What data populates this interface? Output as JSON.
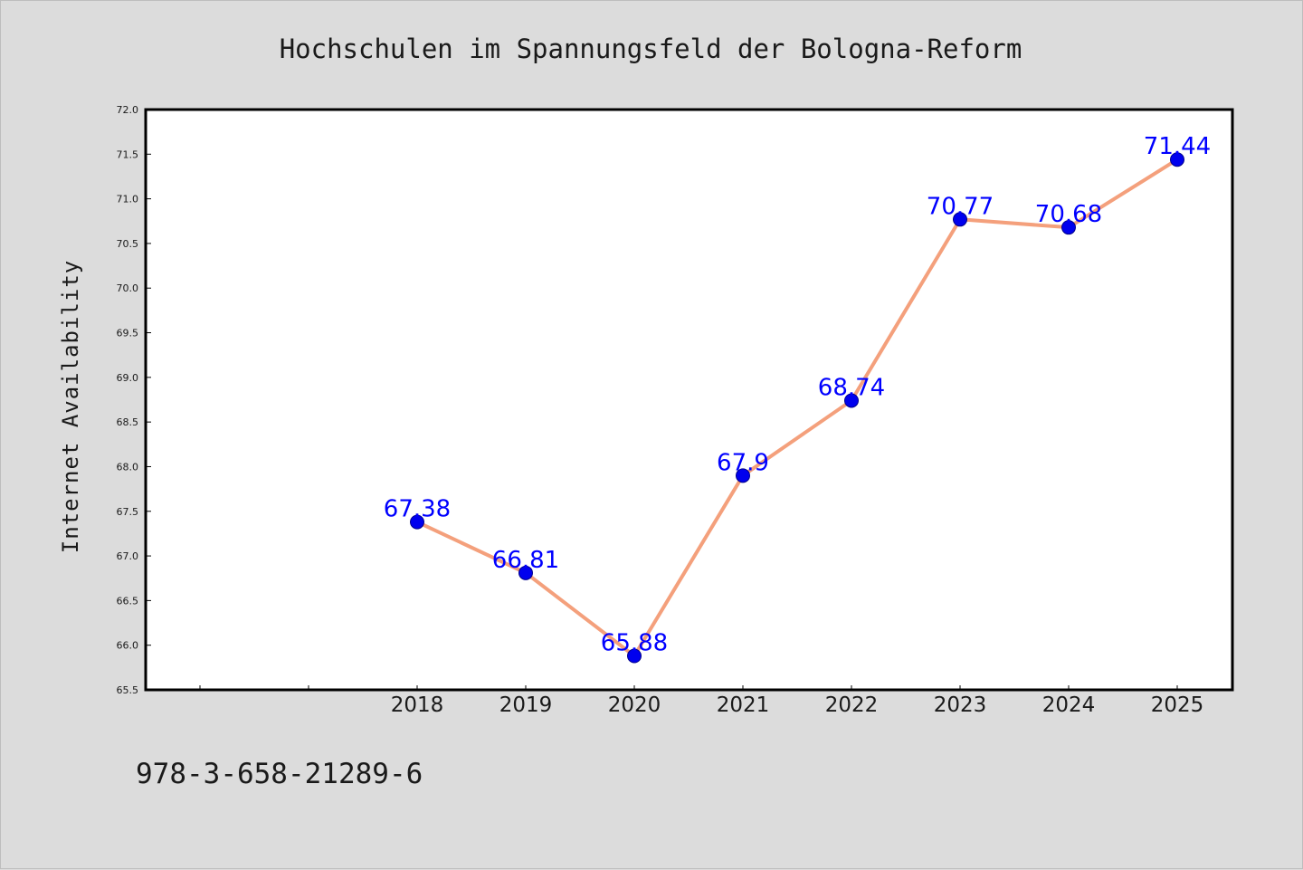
{
  "chart_data": {
    "type": "line",
    "title": "Hochschulen im Spannungsfeld der Bologna-Reform",
    "xlabel": "",
    "ylabel": "Internet Availability",
    "x": [
      "2018",
      "2019",
      "2020",
      "2021",
      "2022",
      "2023",
      "2024",
      "2025"
    ],
    "series": [
      {
        "values": [
          67.38,
          66.81,
          65.88,
          67.9,
          68.74,
          70.77,
          70.68,
          71.44
        ],
        "labels": [
          "67.38",
          "66.81",
          "65.88",
          "67.9",
          "68.74",
          "70.77",
          "70.68",
          "71.44"
        ],
        "line_color": "#f4a07c",
        "marker_color": "#0000ee"
      }
    ],
    "ylim": [
      65.5,
      72.0
    ],
    "yticks": [
      "65.5",
      "66.0",
      "66.5",
      "67.0",
      "67.5",
      "68.0",
      "68.5",
      "69.0",
      "69.5",
      "70.0",
      "70.5",
      "71.0",
      "71.5",
      "72.0"
    ],
    "grid": false,
    "label_color": "#0000ff"
  },
  "footer": {
    "isbn": "978-3-658-21289-6"
  },
  "colors": {
    "background": "#dcdcdc",
    "plot_background": "#ffffff"
  }
}
